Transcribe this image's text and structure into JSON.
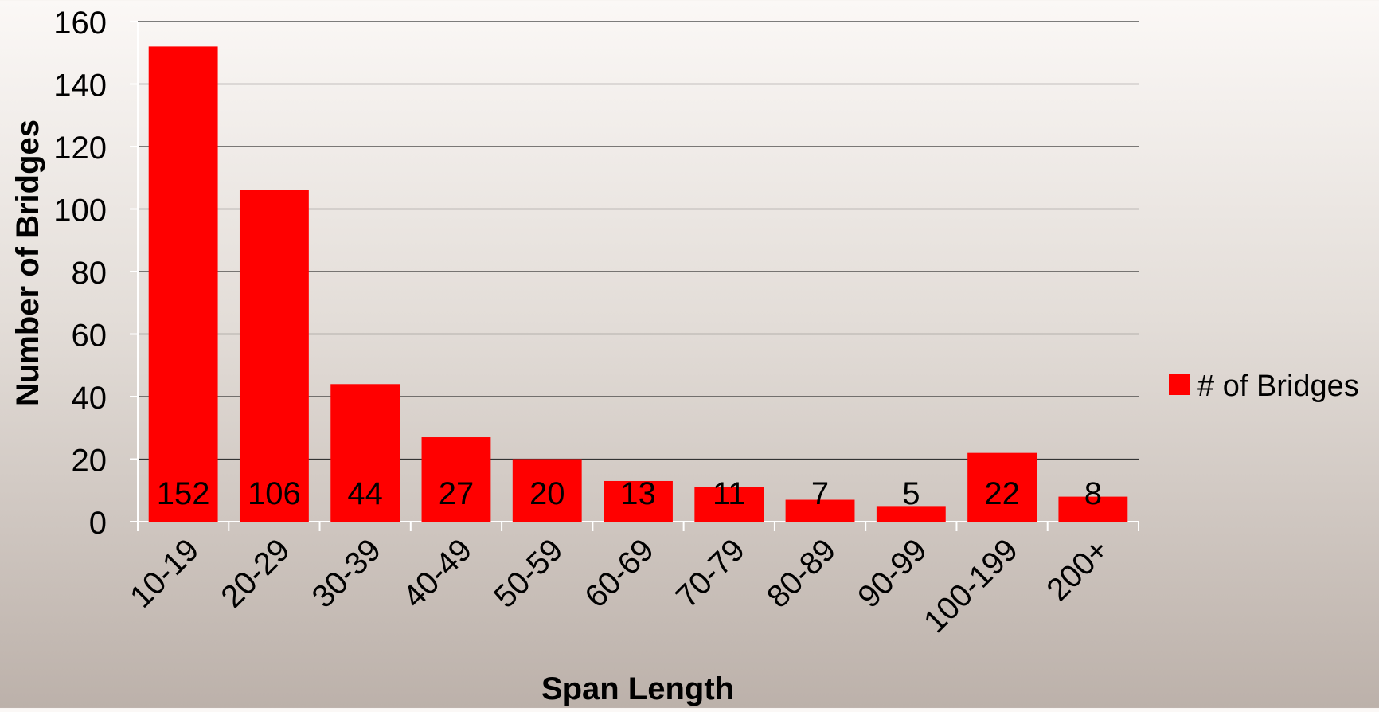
{
  "chart_data": {
    "type": "bar",
    "title": "",
    "xlabel": "Span Length",
    "ylabel": "Number of Bridges",
    "categories": [
      "10-19",
      "20-29",
      "30-39",
      "40-49",
      "50-59",
      "60-69",
      "70-79",
      "80-89",
      "90-99",
      "100-199",
      "200+"
    ],
    "series": [
      {
        "name": "# of Bridges",
        "values": [
          152,
          106,
          44,
          27,
          20,
          13,
          11,
          7,
          5,
          22,
          8
        ],
        "color": "#ff0000"
      }
    ],
    "ylim": [
      0,
      160
    ],
    "yticks": [
      0,
      20,
      40,
      60,
      80,
      100,
      120,
      140,
      160
    ],
    "grid": true,
    "legend_position": "right",
    "data_labels": true
  }
}
